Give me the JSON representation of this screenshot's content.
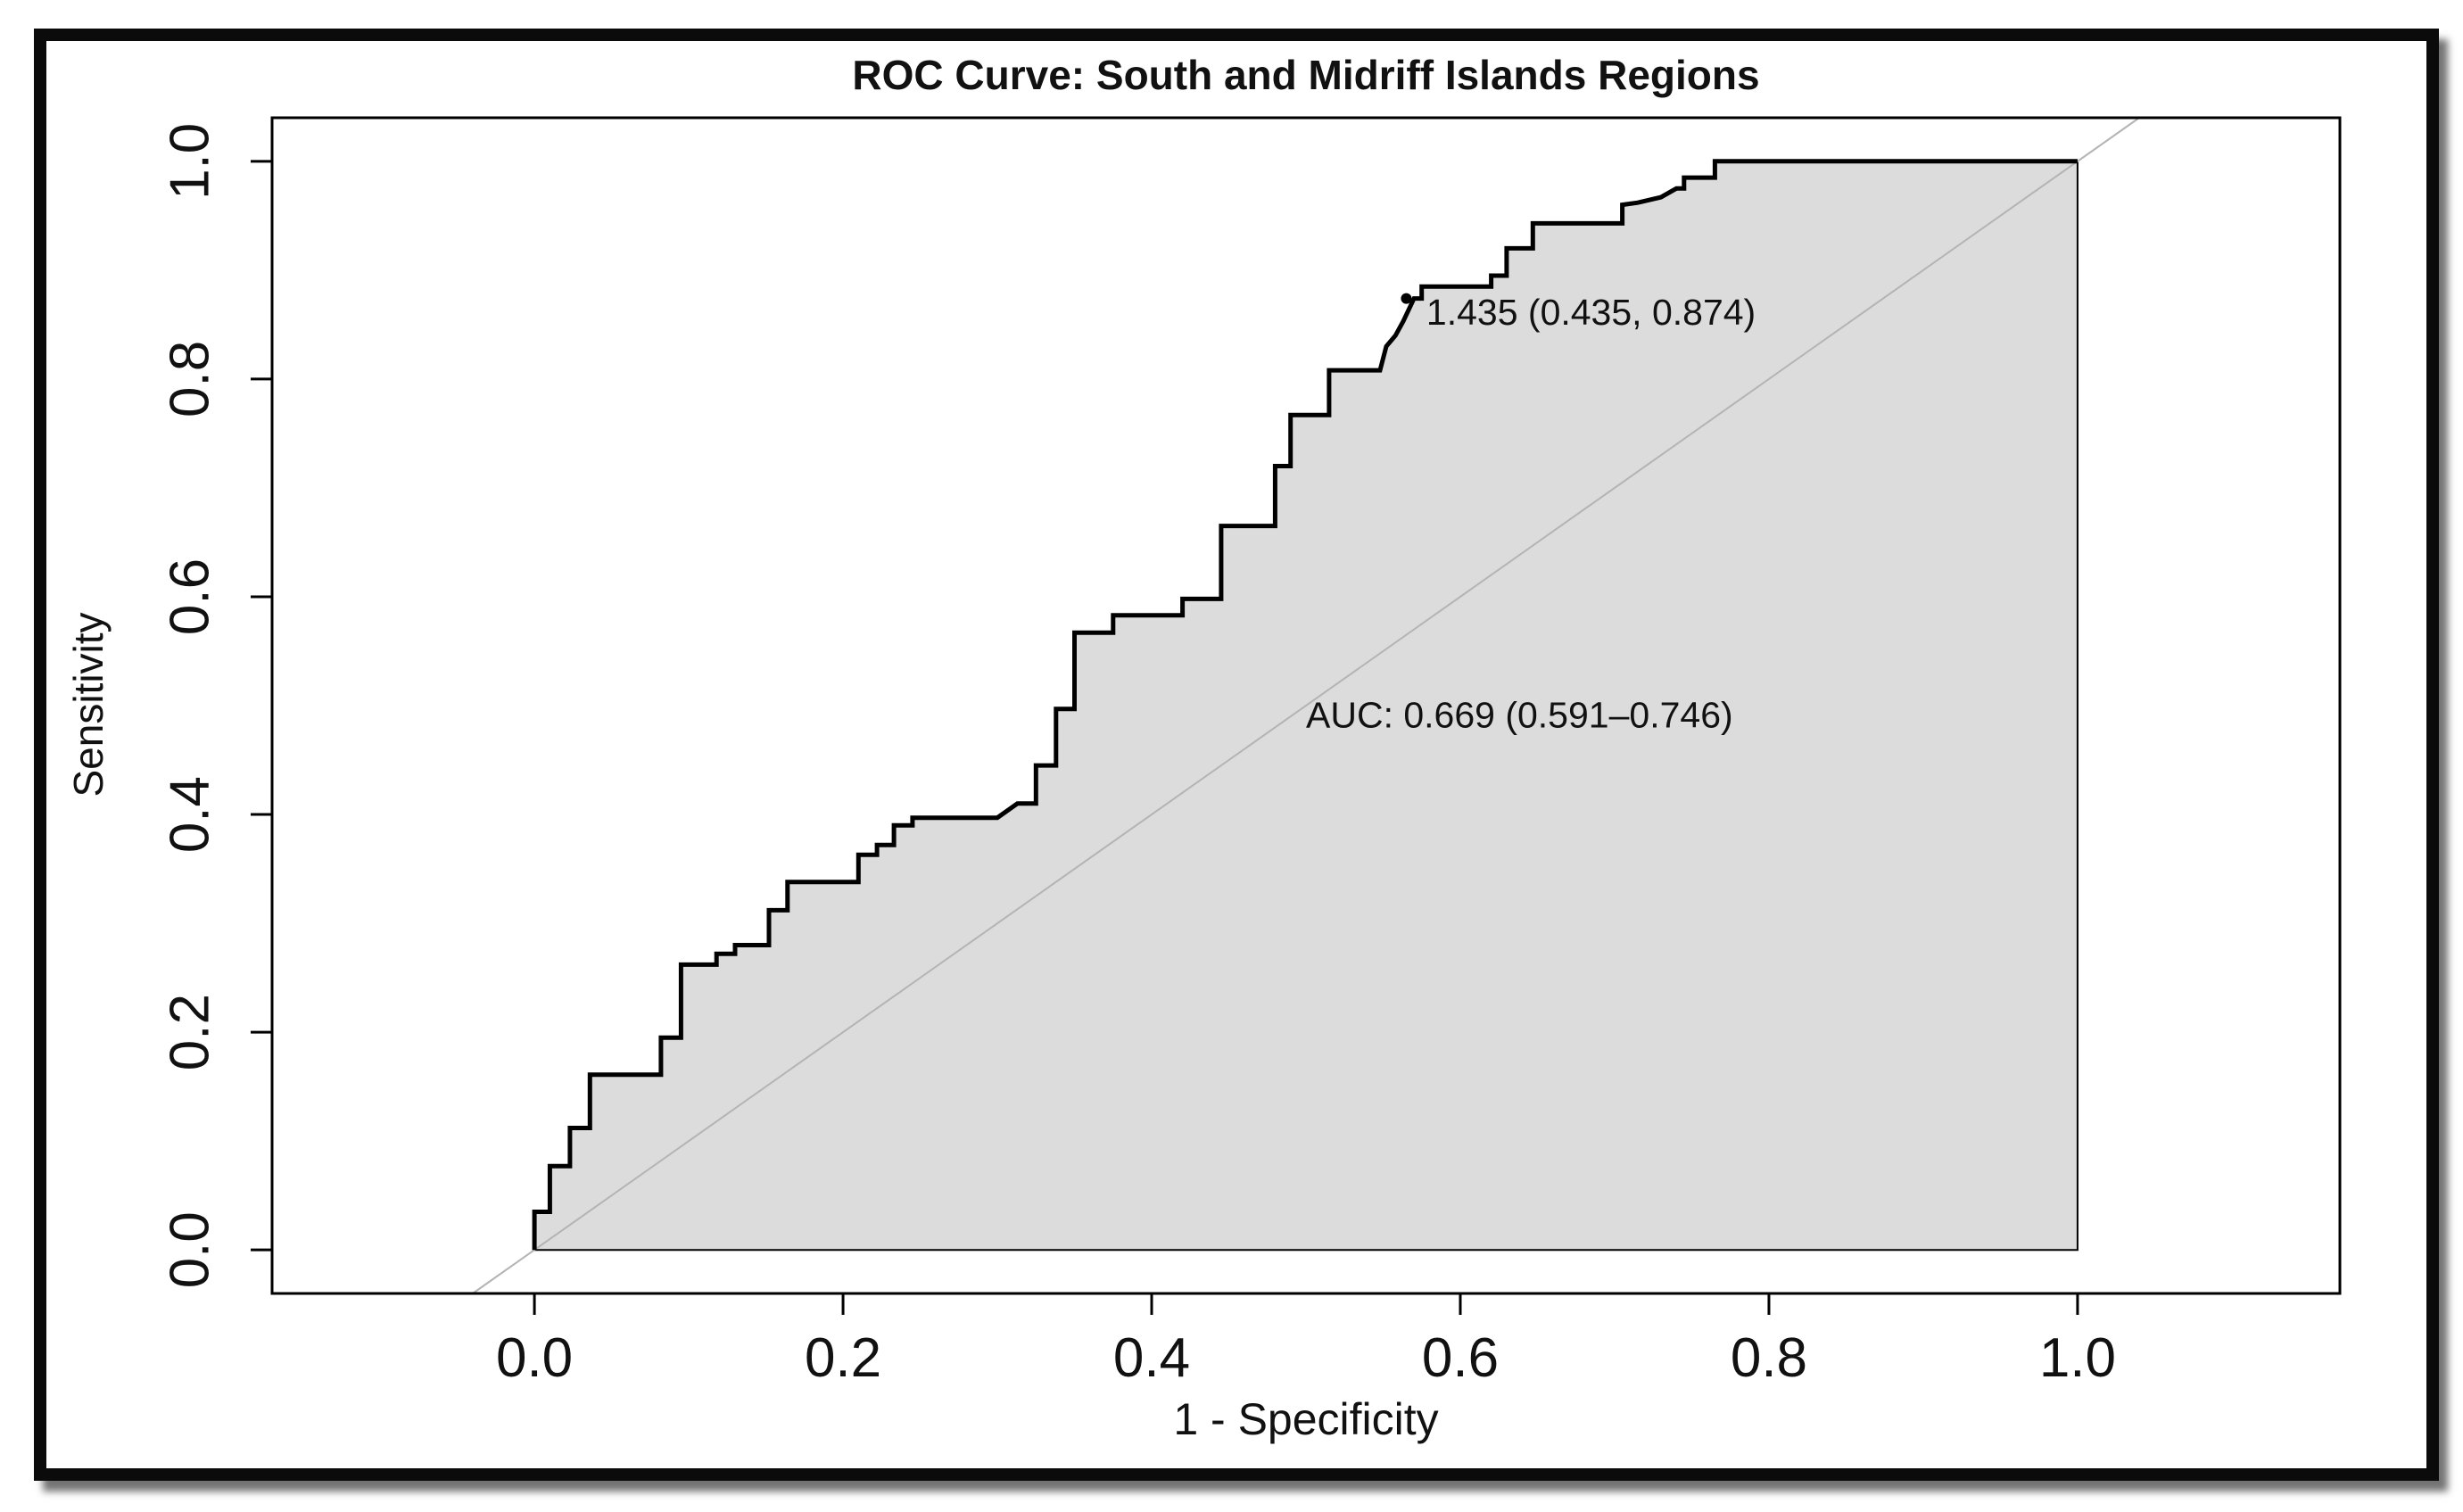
{
  "chart_data": {
    "type": "line",
    "title": "ROC Curve: South and Midriff Islands Regions",
    "xlabel": "1 - Specificity",
    "ylabel": "Sensitivity",
    "xlim": [
      -0.17,
      1.17
    ],
    "ylim": [
      -0.04,
      1.04
    ],
    "x_ticks": [
      0.0,
      0.2,
      0.4,
      0.6,
      0.8,
      1.0
    ],
    "x_tick_labels": [
      "0.0",
      "0.2",
      "0.4",
      "0.6",
      "0.8",
      "1.0"
    ],
    "y_ticks": [
      0.0,
      0.2,
      0.4,
      0.6,
      0.8,
      1.0
    ],
    "y_tick_labels": [
      "0.0",
      "0.2",
      "0.4",
      "0.6",
      "0.8",
      "1.0"
    ],
    "grid": false,
    "auc_polygon_fill": "#dcdcdc",
    "curve_color": "#000000",
    "diagonal_color": "#b4b4b4",
    "series": [
      {
        "name": "ROC curve",
        "x": [
          0.0,
          0.0,
          0.01,
          0.01,
          0.023,
          0.023,
          0.036,
          0.036,
          0.082,
          0.082,
          0.095,
          0.095,
          0.118,
          0.118,
          0.13,
          0.13,
          0.152,
          0.152,
          0.164,
          0.164,
          0.21,
          0.21,
          0.222,
          0.222,
          0.233,
          0.233,
          0.245,
          0.245,
          0.3,
          0.313,
          0.325,
          0.325,
          0.338,
          0.338,
          0.35,
          0.35,
          0.375,
          0.375,
          0.42,
          0.42,
          0.445,
          0.445,
          0.48,
          0.48,
          0.49,
          0.49,
          0.515,
          0.515,
          0.548,
          0.552,
          0.558,
          0.563,
          0.57,
          0.575,
          0.575,
          0.62,
          0.62,
          0.63,
          0.63,
          0.647,
          0.647,
          0.705,
          0.705,
          0.715,
          0.73,
          0.74,
          0.745,
          0.745,
          0.765,
          0.765,
          1.0,
          1.0
        ],
        "y": [
          0.0,
          0.035,
          0.035,
          0.077,
          0.077,
          0.112,
          0.112,
          0.161,
          0.161,
          0.195,
          0.195,
          0.262,
          0.262,
          0.272,
          0.272,
          0.28,
          0.28,
          0.312,
          0.312,
          0.338,
          0.338,
          0.363,
          0.363,
          0.372,
          0.372,
          0.39,
          0.39,
          0.397,
          0.397,
          0.41,
          0.41,
          0.445,
          0.445,
          0.497,
          0.497,
          0.567,
          0.567,
          0.583,
          0.583,
          0.598,
          0.598,
          0.665,
          0.665,
          0.72,
          0.72,
          0.767,
          0.767,
          0.808,
          0.808,
          0.83,
          0.84,
          0.853,
          0.874,
          0.874,
          0.885,
          0.885,
          0.895,
          0.895,
          0.92,
          0.92,
          0.943,
          0.943,
          0.96,
          0.962,
          0.967,
          0.975,
          0.975,
          0.985,
          0.985,
          1.0,
          1.0,
          0.0
        ]
      }
    ],
    "threshold_point": {
      "x": 0.565,
      "y": 0.874
    },
    "annotations": [
      {
        "text": "1.435 (0.435, 0.874)",
        "x": 0.578,
        "y": 0.85
      },
      {
        "text": "AUC: 0.669 (0.591–0.746)",
        "x": 0.5,
        "y": 0.48
      }
    ],
    "reference_line": {
      "x": [
        -0.04,
        1.04
      ],
      "y": [
        -0.04,
        1.04
      ]
    }
  }
}
